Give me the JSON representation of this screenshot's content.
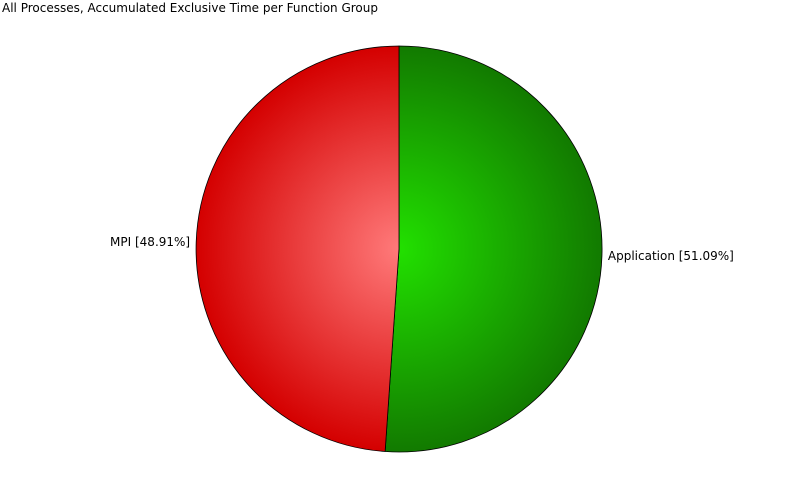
{
  "chart_data": {
    "type": "pie",
    "title": "All Processes, Accumulated Exclusive Time per Function Group",
    "slices": [
      {
        "name": "Application",
        "percent": 51.09,
        "label": "Application [51.09%]",
        "color_center": "#22e000",
        "color_edge": "#127a00"
      },
      {
        "name": "MPI",
        "percent": 48.91,
        "label": "MPI [48.91%]",
        "color_center": "#ff7a7a",
        "color_edge": "#d40000"
      }
    ],
    "legend": "none",
    "grid": false
  }
}
